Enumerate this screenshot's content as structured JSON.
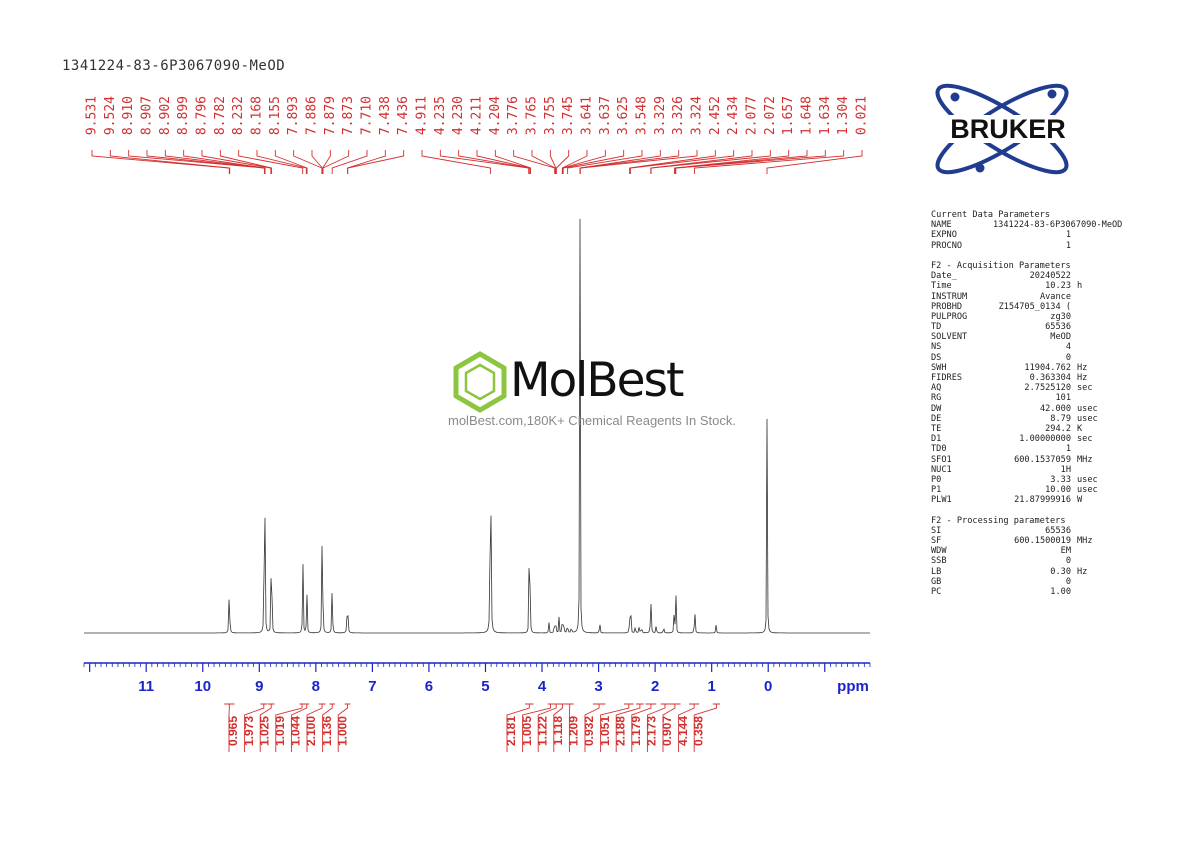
{
  "header": {
    "sample_name": "1341224-83-6P3067090-MeOD"
  },
  "watermark": {
    "brand": "MolBest",
    "tagline": "molBest.com,180K+ Chemical Reagents In Stock."
  },
  "logo": {
    "text": "BRUKER"
  },
  "params": {
    "current_title": "Current Data Parameters",
    "current": [
      {
        "k": "NAME",
        "v": "1341224-83-6P3067090-MeOD",
        "u": ""
      },
      {
        "k": "EXPNO",
        "v": "1",
        "u": ""
      },
      {
        "k": "PROCNO",
        "v": "1",
        "u": ""
      }
    ],
    "acq_title": "F2 - Acquisition Parameters",
    "acq": [
      {
        "k": "Date_",
        "v": "20240522",
        "u": ""
      },
      {
        "k": "Time",
        "v": "10.23",
        "u": "h"
      },
      {
        "k": "INSTRUM",
        "v": "Avance",
        "u": ""
      },
      {
        "k": "PROBHD",
        "v": "Z154705_0134 (",
        "u": ""
      },
      {
        "k": "PULPROG",
        "v": "zg30",
        "u": ""
      },
      {
        "k": "TD",
        "v": "65536",
        "u": ""
      },
      {
        "k": "SOLVENT",
        "v": "MeOD",
        "u": ""
      },
      {
        "k": "NS",
        "v": "4",
        "u": ""
      },
      {
        "k": "DS",
        "v": "0",
        "u": ""
      },
      {
        "k": "SWH",
        "v": "11904.762",
        "u": "Hz"
      },
      {
        "k": "FIDRES",
        "v": "0.363304",
        "u": "Hz"
      },
      {
        "k": "AQ",
        "v": "2.7525120",
        "u": "sec"
      },
      {
        "k": "RG",
        "v": "101",
        "u": ""
      },
      {
        "k": "DW",
        "v": "42.000",
        "u": "usec"
      },
      {
        "k": "DE",
        "v": "8.79",
        "u": "usec"
      },
      {
        "k": "TE",
        "v": "294.2",
        "u": "K"
      },
      {
        "k": "D1",
        "v": "1.00000000",
        "u": "sec"
      },
      {
        "k": "TD0",
        "v": "1",
        "u": ""
      },
      {
        "k": "SFO1",
        "v": "600.1537059",
        "u": "MHz"
      },
      {
        "k": "NUC1",
        "v": "1H",
        "u": ""
      },
      {
        "k": "P0",
        "v": "3.33",
        "u": "usec"
      },
      {
        "k": "P1",
        "v": "10.00",
        "u": "usec"
      },
      {
        "k": "PLW1",
        "v": "21.87999916",
        "u": "W"
      }
    ],
    "proc_title": "F2 - Processing parameters",
    "proc": [
      {
        "k": "SI",
        "v": "65536",
        "u": ""
      },
      {
        "k": "SF",
        "v": "600.1500019",
        "u": "MHz"
      },
      {
        "k": "WDW",
        "v": "EM",
        "u": ""
      },
      {
        "k": "SSB",
        "v": "0",
        "u": ""
      },
      {
        "k": "LB",
        "v": "0.30",
        "u": "Hz"
      },
      {
        "k": "GB",
        "v": "0",
        "u": ""
      },
      {
        "k": "PC",
        "v": "1.00",
        "u": ""
      }
    ]
  },
  "colors": {
    "peak_label": "#d32f2f",
    "axis": "#1a24c8",
    "spectrum": "#333333",
    "logo_blue": "#1f3c8f"
  },
  "chart_data": {
    "type": "line",
    "xlabel": "ppm",
    "xlim": [
      12.1,
      -1.8
    ],
    "x_ticks": [
      "11",
      "10",
      "9",
      "8",
      "7",
      "6",
      "5",
      "4",
      "3",
      "2",
      "1",
      "0"
    ],
    "peak_labels": [
      "9.531",
      "9.524",
      "8.910",
      "8.907",
      "8.902",
      "8.899",
      "8.796",
      "8.782",
      "8.232",
      "8.168",
      "8.155",
      "7.893",
      "7.886",
      "7.879",
      "7.873",
      "7.710",
      "7.438",
      "7.436",
      "4.911",
      "4.235",
      "4.230",
      "4.211",
      "4.204",
      "3.776",
      "3.765",
      "3.755",
      "3.745",
      "3.641",
      "3.637",
      "3.625",
      "3.548",
      "3.329",
      "3.326",
      "3.324",
      "2.452",
      "2.434",
      "2.077",
      "2.072",
      "1.657",
      "1.648",
      "1.634",
      "1.304",
      "0.021"
    ],
    "integrals": [
      {
        "value": "0.965",
        "from": 9.62,
        "to": 9.44
      },
      {
        "value": "1.973",
        "from": 8.98,
        "to": 8.86
      },
      {
        "value": "1.025",
        "from": 8.85,
        "to": 8.73
      },
      {
        "value": "1.019",
        "from": 8.29,
        "to": 8.2
      },
      {
        "value": "1.044",
        "from": 8.2,
        "to": 8.12
      },
      {
        "value": "2.100",
        "from": 7.95,
        "to": 7.83
      },
      {
        "value": "1.136",
        "from": 7.76,
        "to": 7.66
      },
      {
        "value": "1.000",
        "from": 7.49,
        "to": 7.39
      },
      {
        "value": "2.181",
        "from": 4.3,
        "to": 4.15
      },
      {
        "value": "1.005",
        "from": 3.9,
        "to": 3.8
      },
      {
        "value": "1.122",
        "from": 3.8,
        "to": 3.7
      },
      {
        "value": "1.118",
        "from": 3.7,
        "to": 3.58
      },
      {
        "value": "1.209",
        "from": 3.58,
        "to": 3.44
      },
      {
        "value": "0.932",
        "from": 3.1,
        "to": 2.88
      },
      {
        "value": "1.051",
        "from": 2.55,
        "to": 2.38
      },
      {
        "value": "2.188",
        "from": 2.34,
        "to": 2.2
      },
      {
        "value": "1.179",
        "from": 2.17,
        "to": 1.98
      },
      {
        "value": "2.173",
        "from": 1.9,
        "to": 1.75
      },
      {
        "value": "0.907",
        "from": 1.75,
        "to": 1.55
      },
      {
        "value": "4.144",
        "from": 1.4,
        "to": 1.22
      },
      {
        "value": "0.358",
        "from": 0.98,
        "to": 0.85
      }
    ],
    "peaks": [
      {
        "ppm": 9.53,
        "h": 0.28
      },
      {
        "ppm": 8.91,
        "h": 0.54
      },
      {
        "ppm": 8.9,
        "h": 0.3
      },
      {
        "ppm": 8.79,
        "h": 0.22
      },
      {
        "ppm": 8.78,
        "h": 0.2
      },
      {
        "ppm": 8.23,
        "h": 0.31
      },
      {
        "ppm": 8.16,
        "h": 0.2
      },
      {
        "ppm": 7.89,
        "h": 0.26
      },
      {
        "ppm": 7.88,
        "h": 0.23
      },
      {
        "ppm": 7.71,
        "h": 0.24
      },
      {
        "ppm": 7.44,
        "h": 0.26
      },
      {
        "ppm": 4.91,
        "h": 1.44
      },
      {
        "ppm": 4.23,
        "h": 0.2
      },
      {
        "ppm": 4.21,
        "h": 0.19
      },
      {
        "ppm": 3.88,
        "h": 0.05
      },
      {
        "ppm": 3.78,
        "h": 0.06
      },
      {
        "ppm": 3.76,
        "h": 0.07
      },
      {
        "ppm": 3.7,
        "h": 0.05
      },
      {
        "ppm": 3.64,
        "h": 0.08
      },
      {
        "ppm": 3.62,
        "h": 0.07
      },
      {
        "ppm": 3.55,
        "h": 0.06
      },
      {
        "ppm": 3.48,
        "h": 0.04
      },
      {
        "ppm": 3.33,
        "h": 1.47
      },
      {
        "ppm": 2.98,
        "h": 0.06
      },
      {
        "ppm": 2.45,
        "h": 0.11
      },
      {
        "ppm": 2.43,
        "h": 0.08
      },
      {
        "ppm": 2.35,
        "h": 0.04
      },
      {
        "ppm": 2.28,
        "h": 0.04
      },
      {
        "ppm": 2.24,
        "h": 0.04
      },
      {
        "ppm": 2.08,
        "h": 0.1
      },
      {
        "ppm": 2.07,
        "h": 0.09
      },
      {
        "ppm": 1.98,
        "h": 0.04
      },
      {
        "ppm": 1.85,
        "h": 0.04
      },
      {
        "ppm": 1.66,
        "h": 0.16
      },
      {
        "ppm": 1.63,
        "h": 0.12
      },
      {
        "ppm": 1.3,
        "h": 0.14
      },
      {
        "ppm": 0.92,
        "h": 0.04
      },
      {
        "ppm": 0.02,
        "h": 0.76
      }
    ]
  }
}
